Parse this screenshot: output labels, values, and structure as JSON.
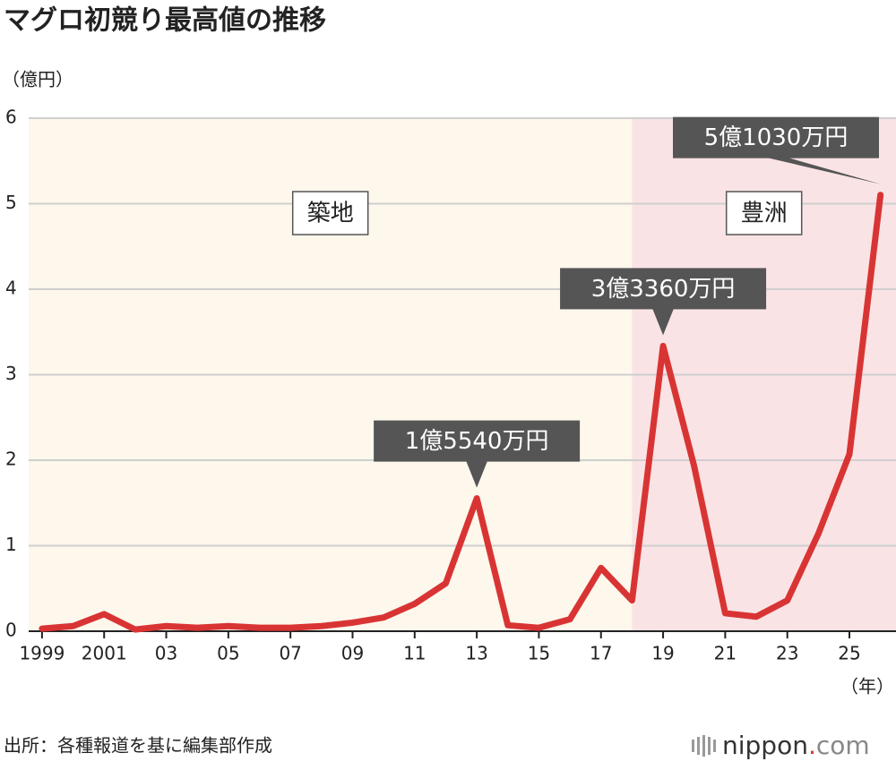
{
  "chart_data": {
    "type": "line",
    "title": "マグロ初競り最高値の推移",
    "y_label": "（億円）",
    "x_label": "（年）",
    "source": "出所：各種報道を基に編集部作成",
    "logo": [
      "nippon",
      ".",
      "com"
    ],
    "x": [
      1999,
      2000,
      2001,
      2002,
      2003,
      2004,
      2005,
      2006,
      2007,
      2008,
      2009,
      2010,
      2011,
      2012,
      2013,
      2014,
      2015,
      2016,
      2017,
      2018,
      2019,
      2020,
      2021,
      2022,
      2023,
      2024,
      2025,
      2026
    ],
    "values": [
      0.03,
      0.06,
      0.2,
      0.02,
      0.06,
      0.04,
      0.06,
      0.04,
      0.04,
      0.06,
      0.1,
      0.16,
      0.32,
      0.56,
      1.554,
      0.07,
      0.04,
      0.14,
      0.74,
      0.36,
      3.336,
      1.93,
      0.21,
      0.17,
      0.36,
      1.14,
      2.07,
      5.103
    ],
    "value_labels": [
      null,
      null,
      null,
      null,
      null,
      null,
      null,
      null,
      null,
      null,
      null,
      null,
      null,
      null,
      "1億5540万円",
      null,
      null,
      null,
      null,
      null,
      "3億3360万円",
      null,
      null,
      null,
      null,
      null,
      null,
      "5億1030万円"
    ],
    "color": "#d93434",
    "xlim": [
      1998.57,
      2026.5
    ],
    "xticks": [
      {
        "value": 1999,
        "label": "1999"
      },
      {
        "value": 2001,
        "label": "2001"
      },
      {
        "value": 2003,
        "label": "03"
      },
      {
        "value": 2005,
        "label": "05"
      },
      {
        "value": 2007,
        "label": "07"
      },
      {
        "value": 2009,
        "label": "09"
      },
      {
        "value": 2011,
        "label": "11"
      },
      {
        "value": 2013,
        "label": "13"
      },
      {
        "value": 2015,
        "label": "15"
      },
      {
        "value": 2017,
        "label": "17"
      },
      {
        "value": 2019,
        "label": "19"
      },
      {
        "value": 2021,
        "label": "21"
      },
      {
        "value": 2023,
        "label": "23"
      },
      {
        "value": 2025,
        "label": "25"
      }
    ],
    "ylim": [
      0,
      6
    ],
    "yticks": [
      0,
      1,
      2,
      3,
      4,
      5,
      6
    ],
    "grid": true,
    "regions": [
      {
        "label": "築地",
        "color": "#fdf7ec",
        "end": 2018
      },
      {
        "label": "豊洲",
        "color": "#fae3e5",
        "start": 2018
      }
    ]
  }
}
